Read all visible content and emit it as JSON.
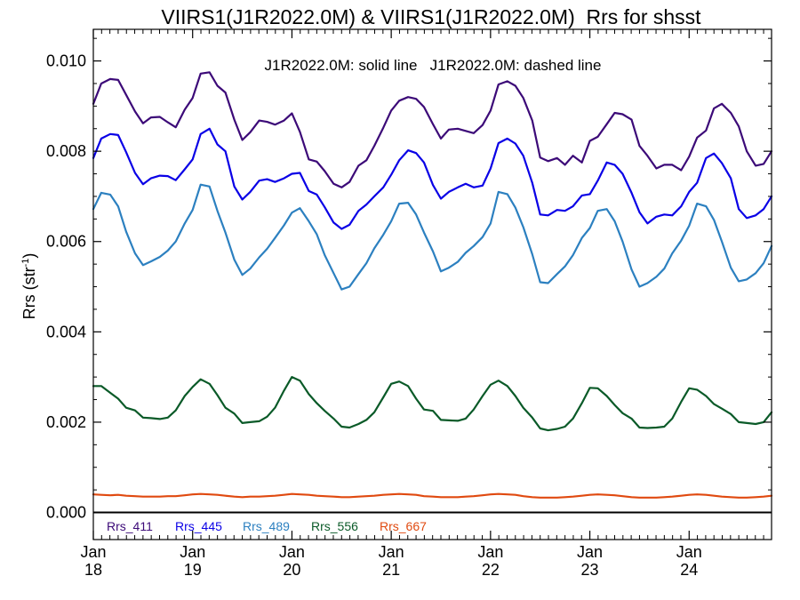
{
  "chart_data": {
    "type": "line",
    "title": "VIIRS1(J1R2022.0M) & VIIRS1(J1R2022.0M)  Rrs for shsst",
    "annotation": "J1R2022.0M: solid line   J1R2022.0M: dashed line",
    "ylabel_main": "Rrs (str",
    "ylabel_sup": "-1",
    "ylabel_tail": ")",
    "xlabel": "",
    "xlim": [
      2018.0,
      2024.83
    ],
    "ylim": [
      -0.0006,
      0.0107
    ],
    "y_ticks": [
      "0.000",
      "0.002",
      "0.004",
      "0.006",
      "0.008",
      "0.010"
    ],
    "y_tick_values": [
      0.0,
      0.002,
      0.004,
      0.006,
      0.008,
      0.01
    ],
    "x_ticks": [
      {
        "value": 2018,
        "month": "Jan",
        "year": "18"
      },
      {
        "value": 2019,
        "month": "Jan",
        "year": "19"
      },
      {
        "value": 2020,
        "month": "Jan",
        "year": "20"
      },
      {
        "value": 2021,
        "month": "Jan",
        "year": "21"
      },
      {
        "value": 2022,
        "month": "Jan",
        "year": "22"
      },
      {
        "value": 2023,
        "month": "Jan",
        "year": "23"
      },
      {
        "value": 2024,
        "month": "Jan",
        "year": "24"
      }
    ],
    "grid": false,
    "legend_position": "bottom-left",
    "series": [
      {
        "name": "Rrs_411",
        "color": "#3c0a78",
        "x": [
          2018.0,
          2018.08,
          2018.17,
          2018.25,
          2018.33,
          2018.42,
          2018.5,
          2018.58,
          2018.67,
          2018.75,
          2018.83,
          2018.92,
          2019.0,
          2019.08,
          2019.17,
          2019.25,
          2019.33,
          2019.42,
          2019.5,
          2019.58,
          2019.67,
          2019.75,
          2019.83,
          2019.92,
          2020.0,
          2020.08,
          2020.17,
          2020.25,
          2020.33,
          2020.42,
          2020.5,
          2020.58,
          2020.67,
          2020.75,
          2020.83,
          2020.92,
          2021.0,
          2021.08,
          2021.17,
          2021.25,
          2021.33,
          2021.42,
          2021.5,
          2021.58,
          2021.67,
          2021.75,
          2021.83,
          2021.92,
          2022.0,
          2022.08,
          2022.17,
          2022.25,
          2022.33,
          2022.42,
          2022.5,
          2022.58,
          2022.67,
          2022.75,
          2022.83,
          2022.92,
          2023.0,
          2023.08,
          2023.17,
          2023.25,
          2023.33,
          2023.42,
          2023.5,
          2023.58,
          2023.67,
          2023.75,
          2023.83,
          2023.92,
          2024.0,
          2024.08,
          2024.17,
          2024.25,
          2024.33,
          2024.42,
          2024.5,
          2024.58,
          2024.67,
          2024.75,
          2024.83
        ],
        "values": [
          0.00905,
          0.0095,
          0.0096,
          0.00958,
          0.00925,
          0.00888,
          0.00862,
          0.00875,
          0.00876,
          0.00864,
          0.00853,
          0.00892,
          0.00918,
          0.00972,
          0.00975,
          0.00945,
          0.0093,
          0.0087,
          0.00825,
          0.00842,
          0.00868,
          0.00865,
          0.00859,
          0.00868,
          0.00884,
          0.00843,
          0.00782,
          0.00777,
          0.00756,
          0.00728,
          0.0072,
          0.00732,
          0.00768,
          0.0078,
          0.00812,
          0.00852,
          0.0089,
          0.00912,
          0.0092,
          0.00916,
          0.00898,
          0.0086,
          0.00828,
          0.00848,
          0.0085,
          0.00845,
          0.0084,
          0.00858,
          0.0089,
          0.00948,
          0.00955,
          0.00945,
          0.00918,
          0.00868,
          0.00786,
          0.00778,
          0.00785,
          0.0077,
          0.0079,
          0.00775,
          0.00823,
          0.00832,
          0.0086,
          0.00885,
          0.00882,
          0.0087,
          0.00812,
          0.0079,
          0.00762,
          0.0077,
          0.0077,
          0.00758,
          0.00788,
          0.0083,
          0.00846,
          0.00895,
          0.00905,
          0.00885,
          0.00855,
          0.008,
          0.00768,
          0.00772,
          0.008
        ]
      },
      {
        "name": "Rrs_445",
        "color": "#0a00e6",
        "x": [
          2018.0,
          2018.08,
          2018.17,
          2018.25,
          2018.33,
          2018.42,
          2018.5,
          2018.58,
          2018.67,
          2018.75,
          2018.83,
          2018.92,
          2019.0,
          2019.08,
          2019.17,
          2019.25,
          2019.33,
          2019.42,
          2019.5,
          2019.58,
          2019.67,
          2019.75,
          2019.83,
          2019.92,
          2020.0,
          2020.08,
          2020.17,
          2020.25,
          2020.33,
          2020.42,
          2020.5,
          2020.58,
          2020.67,
          2020.75,
          2020.83,
          2020.92,
          2021.0,
          2021.08,
          2021.17,
          2021.25,
          2021.33,
          2021.42,
          2021.5,
          2021.58,
          2021.67,
          2021.75,
          2021.83,
          2021.92,
          2022.0,
          2022.08,
          2022.17,
          2022.25,
          2022.33,
          2022.42,
          2022.5,
          2022.58,
          2022.67,
          2022.75,
          2022.83,
          2022.92,
          2023.0,
          2023.08,
          2023.17,
          2023.25,
          2023.33,
          2023.42,
          2023.5,
          2023.58,
          2023.67,
          2023.75,
          2023.83,
          2023.92,
          2024.0,
          2024.08,
          2024.17,
          2024.25,
          2024.33,
          2024.42,
          2024.5,
          2024.58,
          2024.67,
          2024.75,
          2024.83
        ],
        "values": [
          0.00785,
          0.00828,
          0.00838,
          0.00836,
          0.00798,
          0.00752,
          0.00727,
          0.0074,
          0.00746,
          0.00745,
          0.00736,
          0.0076,
          0.00782,
          0.00838,
          0.0085,
          0.00815,
          0.008,
          0.00722,
          0.00693,
          0.0071,
          0.00735,
          0.00738,
          0.00732,
          0.0074,
          0.0075,
          0.00752,
          0.00712,
          0.00704,
          0.00676,
          0.00642,
          0.00628,
          0.00637,
          0.00668,
          0.00682,
          0.007,
          0.0072,
          0.00748,
          0.0078,
          0.00802,
          0.00796,
          0.00775,
          0.00725,
          0.00695,
          0.0071,
          0.0072,
          0.00728,
          0.0072,
          0.00724,
          0.00762,
          0.00818,
          0.00828,
          0.00817,
          0.0079,
          0.0073,
          0.0066,
          0.00658,
          0.0067,
          0.00668,
          0.00678,
          0.00702,
          0.00705,
          0.00735,
          0.00775,
          0.0077,
          0.0075,
          0.00708,
          0.00665,
          0.0064,
          0.00655,
          0.0066,
          0.00658,
          0.00678,
          0.0071,
          0.0073,
          0.00785,
          0.00795,
          0.00774,
          0.0074,
          0.00672,
          0.00652,
          0.00658,
          0.00672,
          0.007
        ]
      },
      {
        "name": "Rrs_489",
        "color": "#2c80c0",
        "x": [
          2018.0,
          2018.08,
          2018.17,
          2018.25,
          2018.33,
          2018.42,
          2018.5,
          2018.58,
          2018.67,
          2018.75,
          2018.83,
          2018.92,
          2019.0,
          2019.08,
          2019.17,
          2019.25,
          2019.33,
          2019.42,
          2019.5,
          2019.58,
          2019.67,
          2019.75,
          2019.83,
          2019.92,
          2020.0,
          2020.08,
          2020.17,
          2020.25,
          2020.33,
          2020.42,
          2020.5,
          2020.58,
          2020.67,
          2020.75,
          2020.83,
          2020.92,
          2021.0,
          2021.08,
          2021.17,
          2021.25,
          2021.33,
          2021.42,
          2021.5,
          2021.58,
          2021.67,
          2021.75,
          2021.83,
          2021.92,
          2022.0,
          2022.08,
          2022.17,
          2022.25,
          2022.33,
          2022.42,
          2022.5,
          2022.58,
          2022.67,
          2022.75,
          2022.83,
          2022.92,
          2023.0,
          2023.08,
          2023.17,
          2023.25,
          2023.33,
          2023.42,
          2023.5,
          2023.58,
          2023.67,
          2023.75,
          2023.83,
          2023.92,
          2024.0,
          2024.08,
          2024.17,
          2024.25,
          2024.33,
          2024.42,
          2024.5,
          2024.58,
          2024.67,
          2024.75,
          2024.83
        ],
        "values": [
          0.00672,
          0.00708,
          0.00704,
          0.00678,
          0.00622,
          0.00574,
          0.00548,
          0.00556,
          0.00566,
          0.0058,
          0.006,
          0.0064,
          0.0067,
          0.00726,
          0.00722,
          0.00668,
          0.0062,
          0.0056,
          0.00526,
          0.0054,
          0.00565,
          0.00584,
          0.00608,
          0.00636,
          0.00664,
          0.00674,
          0.00645,
          0.00616,
          0.0057,
          0.0053,
          0.00494,
          0.005,
          0.00528,
          0.00552,
          0.00585,
          0.00615,
          0.00645,
          0.00684,
          0.00686,
          0.0066,
          0.0062,
          0.00578,
          0.00534,
          0.00542,
          0.00555,
          0.00575,
          0.0059,
          0.0061,
          0.0064,
          0.0071,
          0.00705,
          0.00675,
          0.00632,
          0.00572,
          0.0051,
          0.00508,
          0.00528,
          0.00545,
          0.0057,
          0.00608,
          0.0063,
          0.00668,
          0.00672,
          0.00645,
          0.006,
          0.00538,
          0.005,
          0.00508,
          0.00522,
          0.0054,
          0.00574,
          0.00602,
          0.00635,
          0.00684,
          0.00678,
          0.00648,
          0.006,
          0.00542,
          0.00512,
          0.00516,
          0.0053,
          0.00552,
          0.0059
        ]
      },
      {
        "name": "Rrs_556",
        "color": "#0a5a28",
        "x": [
          2018.0,
          2018.08,
          2018.17,
          2018.25,
          2018.33,
          2018.42,
          2018.5,
          2018.58,
          2018.67,
          2018.75,
          2018.83,
          2018.92,
          2019.0,
          2019.08,
          2019.17,
          2019.25,
          2019.33,
          2019.42,
          2019.5,
          2019.58,
          2019.67,
          2019.75,
          2019.83,
          2019.92,
          2020.0,
          2020.08,
          2020.17,
          2020.25,
          2020.33,
          2020.42,
          2020.5,
          2020.58,
          2020.67,
          2020.75,
          2020.83,
          2020.92,
          2021.0,
          2021.08,
          2021.17,
          2021.25,
          2021.33,
          2021.42,
          2021.5,
          2021.58,
          2021.67,
          2021.75,
          2021.83,
          2021.92,
          2022.0,
          2022.08,
          2022.17,
          2022.25,
          2022.33,
          2022.42,
          2022.5,
          2022.58,
          2022.67,
          2022.75,
          2022.83,
          2022.92,
          2023.0,
          2023.08,
          2023.17,
          2023.25,
          2023.33,
          2023.42,
          2023.5,
          2023.58,
          2023.67,
          2023.75,
          2023.83,
          2023.92,
          2024.0,
          2024.08,
          2024.17,
          2024.25,
          2024.33,
          2024.42,
          2024.5,
          2024.58,
          2024.67,
          2024.75,
          2024.83
        ],
        "values": [
          0.0028,
          0.0028,
          0.00265,
          0.00252,
          0.00232,
          0.00226,
          0.0021,
          0.00209,
          0.00207,
          0.0021,
          0.00226,
          0.00258,
          0.00278,
          0.00295,
          0.00285,
          0.0026,
          0.00232,
          0.00219,
          0.00198,
          0.002,
          0.00202,
          0.00212,
          0.00232,
          0.0027,
          0.003,
          0.00292,
          0.00262,
          0.00242,
          0.00225,
          0.00208,
          0.0019,
          0.00188,
          0.00196,
          0.00205,
          0.00222,
          0.00255,
          0.00285,
          0.0029,
          0.0028,
          0.00252,
          0.00228,
          0.00225,
          0.00205,
          0.00204,
          0.00203,
          0.00208,
          0.00228,
          0.00258,
          0.00283,
          0.00292,
          0.0028,
          0.00258,
          0.00232,
          0.0021,
          0.00186,
          0.00182,
          0.00185,
          0.0019,
          0.00208,
          0.00242,
          0.00276,
          0.00275,
          0.00258,
          0.00238,
          0.0022,
          0.00208,
          0.00188,
          0.00187,
          0.00188,
          0.0019,
          0.00208,
          0.00245,
          0.00275,
          0.00272,
          0.00258,
          0.0024,
          0.0023,
          0.00218,
          0.002,
          0.00198,
          0.00196,
          0.002,
          0.00222
        ]
      },
      {
        "name": "Rrs_667",
        "color": "#e04a10",
        "x": [
          2018.0,
          2018.08,
          2018.17,
          2018.25,
          2018.33,
          2018.42,
          2018.5,
          2018.58,
          2018.67,
          2018.75,
          2018.83,
          2018.92,
          2019.0,
          2019.08,
          2019.17,
          2019.25,
          2019.33,
          2019.42,
          2019.5,
          2019.58,
          2019.67,
          2019.75,
          2019.83,
          2019.92,
          2020.0,
          2020.08,
          2020.17,
          2020.25,
          2020.33,
          2020.42,
          2020.5,
          2020.58,
          2020.67,
          2020.75,
          2020.83,
          2020.92,
          2021.0,
          2021.08,
          2021.17,
          2021.25,
          2021.33,
          2021.42,
          2021.5,
          2021.58,
          2021.67,
          2021.75,
          2021.83,
          2021.92,
          2022.0,
          2022.08,
          2022.17,
          2022.25,
          2022.33,
          2022.42,
          2022.5,
          2022.58,
          2022.67,
          2022.75,
          2022.83,
          2022.92,
          2023.0,
          2023.08,
          2023.17,
          2023.25,
          2023.33,
          2023.42,
          2023.5,
          2023.58,
          2023.67,
          2023.75,
          2023.83,
          2023.92,
          2024.0,
          2024.08,
          2024.17,
          2024.25,
          2024.33,
          2024.42,
          2024.5,
          2024.58,
          2024.67,
          2024.75,
          2024.83
        ],
        "values": [
          0.0004,
          0.00039,
          0.00038,
          0.00039,
          0.00037,
          0.00036,
          0.00035,
          0.00035,
          0.00035,
          0.00036,
          0.00036,
          0.00038,
          0.0004,
          0.00041,
          0.0004,
          0.00039,
          0.00037,
          0.00035,
          0.00034,
          0.00035,
          0.00035,
          0.00036,
          0.00037,
          0.00039,
          0.00041,
          0.0004,
          0.00039,
          0.00037,
          0.00036,
          0.00035,
          0.00034,
          0.00034,
          0.00035,
          0.00036,
          0.00037,
          0.00039,
          0.0004,
          0.00041,
          0.0004,
          0.00039,
          0.00036,
          0.00035,
          0.00034,
          0.00034,
          0.00034,
          0.00035,
          0.00036,
          0.00038,
          0.0004,
          0.00041,
          0.0004,
          0.00039,
          0.00036,
          0.00034,
          0.00033,
          0.00033,
          0.00033,
          0.00034,
          0.00035,
          0.00037,
          0.00039,
          0.0004,
          0.00039,
          0.00038,
          0.00036,
          0.00034,
          0.00033,
          0.00033,
          0.00033,
          0.00034,
          0.00035,
          0.00037,
          0.00039,
          0.0004,
          0.00039,
          0.00037,
          0.00035,
          0.00034,
          0.00033,
          0.00033,
          0.00034,
          0.00035,
          0.00037
        ]
      }
    ]
  }
}
